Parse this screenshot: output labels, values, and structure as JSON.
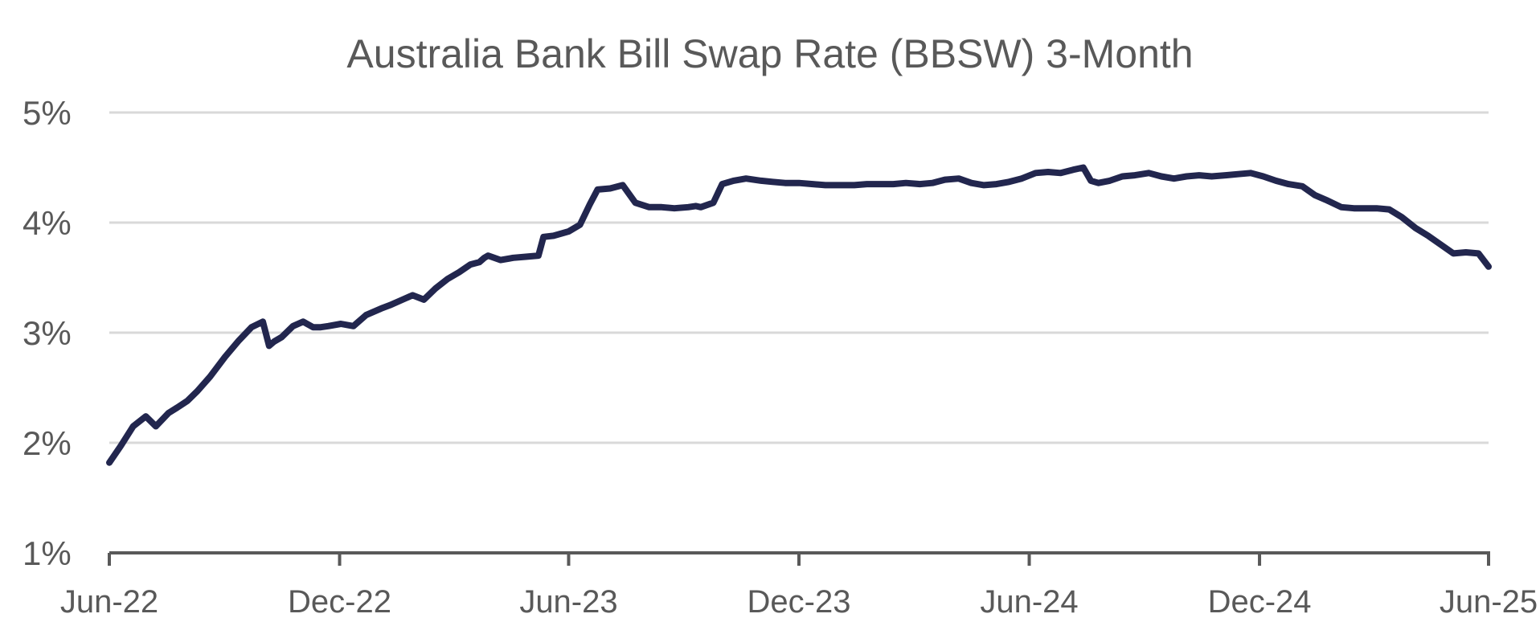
{
  "chart_data": {
    "type": "line",
    "title": "Australia Bank Bill Swap Rate (BBSW) 3-Month",
    "xlabel": "",
    "ylabel": "",
    "ylim": [
      1,
      5
    ],
    "y_ticks": [
      1,
      2,
      3,
      4,
      5
    ],
    "y_tick_labels": [
      "1%",
      "2%",
      "3%",
      "4%",
      "5%"
    ],
    "x_range": [
      "2022-06",
      "2025-06"
    ],
    "x_ticks": [
      "2022-06",
      "2022-12",
      "2023-06",
      "2023-12",
      "2024-06",
      "2024-12",
      "2025-06"
    ],
    "x_tick_labels": [
      "Jun-22",
      "Dec-22",
      "Jun-23",
      "Dec-23",
      "Jun-24",
      "Dec-24",
      "Jun-25"
    ],
    "grid": true,
    "legend": "none",
    "series": [
      {
        "color": "#22264e",
        "x": [
          "2022-06-01",
          "2022-06-10",
          "2022-06-20",
          "2022-06-30",
          "2022-07-08",
          "2022-07-18",
          "2022-07-25",
          "2022-08-02",
          "2022-08-10",
          "2022-08-20",
          "2022-09-01",
          "2022-09-12",
          "2022-09-22",
          "2022-10-01",
          "2022-10-06",
          "2022-10-10",
          "2022-10-16",
          "2022-10-25",
          "2022-11-02",
          "2022-11-10",
          "2022-11-16",
          "2022-11-22",
          "2022-12-02",
          "2022-12-12",
          "2022-12-22",
          "2023-01-03",
          "2023-01-10",
          "2023-01-20",
          "2023-01-28",
          "2023-02-06",
          "2023-02-15",
          "2023-02-25",
          "2023-03-06",
          "2023-03-15",
          "2023-03-22",
          "2023-03-26",
          "2023-03-29",
          "2023-04-08",
          "2023-04-18",
          "2023-04-28",
          "2023-05-08",
          "2023-05-12",
          "2023-05-20",
          "2023-06-01",
          "2023-06-10",
          "2023-06-18",
          "2023-06-24",
          "2023-07-04",
          "2023-07-14",
          "2023-07-24",
          "2023-08-04",
          "2023-08-14",
          "2023-08-24",
          "2023-09-04",
          "2023-09-10",
          "2023-09-14",
          "2023-09-24",
          "2023-10-01",
          "2023-10-10",
          "2023-10-20",
          "2023-11-01",
          "2023-11-10",
          "2023-11-20",
          "2023-12-01",
          "2023-12-12",
          "2023-12-22",
          "2024-01-04",
          "2024-01-14",
          "2024-01-24",
          "2024-02-04",
          "2024-02-14",
          "2024-02-24",
          "2024-03-06",
          "2024-03-16",
          "2024-03-26",
          "2024-04-06",
          "2024-04-16",
          "2024-04-26",
          "2024-05-06",
          "2024-05-16",
          "2024-05-26",
          "2024-06-06",
          "2024-06-16",
          "2024-06-26",
          "2024-07-06",
          "2024-07-14",
          "2024-07-20",
          "2024-07-26",
          "2024-08-04",
          "2024-08-14",
          "2024-08-24",
          "2024-09-04",
          "2024-09-14",
          "2024-09-24",
          "2024-10-04",
          "2024-10-14",
          "2024-10-24",
          "2024-11-04",
          "2024-11-14",
          "2024-11-24",
          "2024-12-04",
          "2024-12-14",
          "2024-12-24",
          "2025-01-04",
          "2025-01-14",
          "2025-01-24",
          "2025-02-04",
          "2025-02-14",
          "2025-02-24",
          "2025-03-04",
          "2025-03-14",
          "2025-03-24",
          "2025-04-04",
          "2025-04-14",
          "2025-04-24",
          "2025-05-04",
          "2025-05-14",
          "2025-05-24",
          "2025-06-01"
        ],
        "y": [
          1.82,
          1.97,
          2.15,
          2.24,
          2.15,
          2.27,
          2.32,
          2.38,
          2.47,
          2.6,
          2.78,
          2.93,
          3.05,
          3.1,
          2.88,
          2.92,
          2.96,
          3.06,
          3.1,
          3.05,
          3.05,
          3.06,
          3.08,
          3.06,
          3.16,
          3.22,
          3.25,
          3.3,
          3.34,
          3.3,
          3.4,
          3.49,
          3.55,
          3.62,
          3.64,
          3.68,
          3.7,
          3.66,
          3.68,
          3.69,
          3.7,
          3.87,
          3.88,
          3.92,
          3.98,
          4.17,
          4.3,
          4.31,
          4.34,
          4.18,
          4.14,
          4.14,
          4.13,
          4.14,
          4.15,
          4.14,
          4.18,
          4.35,
          4.38,
          4.4,
          4.38,
          4.37,
          4.36,
          4.36,
          4.35,
          4.34,
          4.34,
          4.34,
          4.35,
          4.35,
          4.35,
          4.36,
          4.35,
          4.36,
          4.39,
          4.4,
          4.36,
          4.34,
          4.35,
          4.37,
          4.4,
          4.45,
          4.46,
          4.45,
          4.48,
          4.5,
          4.38,
          4.36,
          4.38,
          4.42,
          4.43,
          4.45,
          4.42,
          4.4,
          4.42,
          4.43,
          4.42,
          4.43,
          4.44,
          4.45,
          4.42,
          4.38,
          4.35,
          4.33,
          4.25,
          4.2,
          4.14,
          4.13,
          4.13,
          4.13,
          4.12,
          4.05,
          3.95,
          3.88,
          3.8,
          3.72,
          3.73,
          3.72,
          3.6
        ]
      }
    ]
  }
}
